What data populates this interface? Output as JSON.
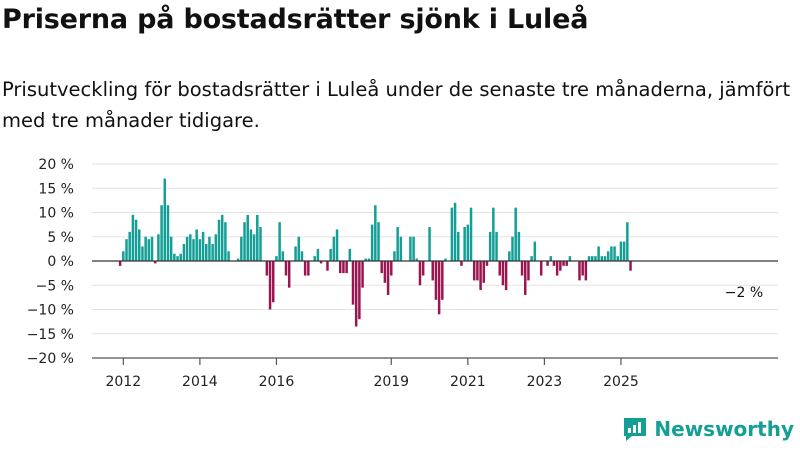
{
  "header": {
    "title": "Priserna på bostadsrätter sjönk i Luleå",
    "subtitle": "Prisutveckling för bostadsrätter i Luleå under de senaste tre månaderna, jämfört med tre månader tidigare."
  },
  "brand": {
    "name": "Newsworthy",
    "icon": "newsworthy-logo-icon"
  },
  "colors": {
    "positive": "#139e96",
    "negative": "#9b1650",
    "grid": "#e3e3e3",
    "axis": "#555555"
  },
  "chart_data": {
    "type": "bar",
    "x_start": "2011-10",
    "x_end": "2025-02",
    "x_unit": "month",
    "ylim": [
      -20,
      20
    ],
    "yticks": [
      -20,
      -15,
      -10,
      -5,
      0,
      5,
      10,
      15,
      20
    ],
    "ytick_labels": [
      "−20 %",
      "−15 %",
      "−10 %",
      "−5 %",
      "0 %",
      "5 %",
      "10 %",
      "15 %",
      "20 %"
    ],
    "xticks": [
      "2012",
      "2014",
      "2016",
      "2019",
      "2021",
      "2023",
      "2025"
    ],
    "grid": true,
    "values": [
      0,
      0,
      -1,
      2,
      4.5,
      6,
      9.5,
      8.5,
      6.5,
      3,
      5,
      4.5,
      5,
      -0.5,
      5.5,
      11.5,
      17,
      11.5,
      5,
      1.5,
      1,
      1.5,
      3.5,
      5,
      5.5,
      4.5,
      6.5,
      4.5,
      6,
      3.5,
      5,
      3.5,
      5.5,
      8.5,
      9.5,
      8,
      2,
      0,
      0,
      0.5,
      5,
      8,
      9.5,
      6.5,
      5.5,
      9.5,
      7,
      0,
      -3,
      -10,
      -8.5,
      1,
      8,
      2,
      -3,
      -5.5,
      0,
      3,
      5,
      2,
      -3,
      -3,
      0,
      1,
      2.5,
      -0.5,
      0,
      -2,
      2.5,
      5,
      6.5,
      -2.5,
      -2.5,
      -2.5,
      2.5,
      -9,
      -13.5,
      -12,
      -5.5,
      0.5,
      0.5,
      7.5,
      11.5,
      8,
      -2.5,
      -4.5,
      -7,
      -3,
      2,
      7,
      5,
      0,
      0,
      5,
      5,
      0.5,
      -5,
      -3,
      0,
      7,
      -4,
      -8,
      -11,
      -8,
      0.5,
      0,
      11,
      12,
      6,
      -1,
      7,
      7.5,
      11,
      -4,
      -4,
      -6,
      -4.5,
      -1,
      6,
      11,
      6,
      -3,
      -5,
      -6,
      2,
      5,
      11,
      6,
      -3,
      -7,
      -4,
      1,
      4,
      0,
      -3,
      0,
      -1,
      1,
      -1,
      -3,
      -2,
      -1,
      -1,
      1,
      0,
      0,
      -4,
      -3,
      -4,
      1,
      1,
      1,
      3,
      1,
      1,
      2,
      3,
      3,
      1,
      4,
      4,
      8,
      -2
    ],
    "last_value_label": "−2 %"
  }
}
